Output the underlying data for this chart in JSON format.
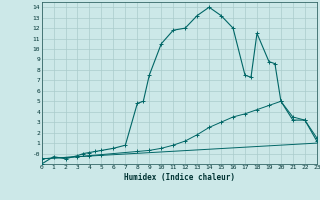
{
  "xlabel": "Humidex (Indice chaleur)",
  "bg_color": "#cce8e8",
  "grid_color": "#aacccc",
  "line_color": "#006666",
  "xlim": [
    0,
    23
  ],
  "ylim": [
    -1,
    14.5
  ],
  "xticks": [
    0,
    1,
    2,
    3,
    4,
    5,
    6,
    7,
    8,
    9,
    10,
    11,
    12,
    13,
    14,
    15,
    16,
    17,
    18,
    19,
    20,
    21,
    22,
    23
  ],
  "yticks": [
    0,
    1,
    2,
    3,
    4,
    5,
    6,
    7,
    8,
    9,
    10,
    11,
    12,
    13,
    14
  ],
  "ytick_labels": [
    "-0",
    "1",
    "2",
    "3",
    "4",
    "5",
    "6",
    "7",
    "8",
    "9",
    "10",
    "11",
    "12",
    "13",
    "14"
  ],
  "curve1_x": [
    0,
    1,
    2,
    3,
    3.5,
    4,
    4.5,
    5,
    6,
    7,
    8,
    8.5,
    9,
    10,
    11,
    12,
    13,
    14,
    15,
    16,
    17,
    17.5,
    18,
    19,
    19.5,
    20,
    21,
    22,
    23
  ],
  "curve1_y": [
    -1.0,
    -0.3,
    -0.5,
    -0.2,
    0.0,
    0.1,
    0.2,
    0.3,
    0.5,
    0.8,
    4.8,
    5.0,
    7.5,
    10.5,
    11.8,
    12.0,
    13.2,
    14.0,
    13.2,
    12.0,
    7.5,
    7.3,
    11.5,
    8.8,
    8.6,
    5.0,
    3.2,
    3.2,
    1.2
  ],
  "curve2_x": [
    0,
    3,
    4,
    5,
    8,
    9,
    10,
    11,
    12,
    13,
    14,
    15,
    16,
    17,
    18,
    19,
    20,
    21,
    22,
    23
  ],
  "curve2_y": [
    -0.5,
    -0.3,
    -0.2,
    -0.1,
    0.2,
    0.3,
    0.5,
    0.8,
    1.2,
    1.8,
    2.5,
    3.0,
    3.5,
    3.8,
    4.2,
    4.6,
    5.0,
    3.5,
    3.2,
    1.5
  ],
  "curve3_x": [
    0,
    23
  ],
  "curve3_y": [
    -0.5,
    1.0
  ]
}
